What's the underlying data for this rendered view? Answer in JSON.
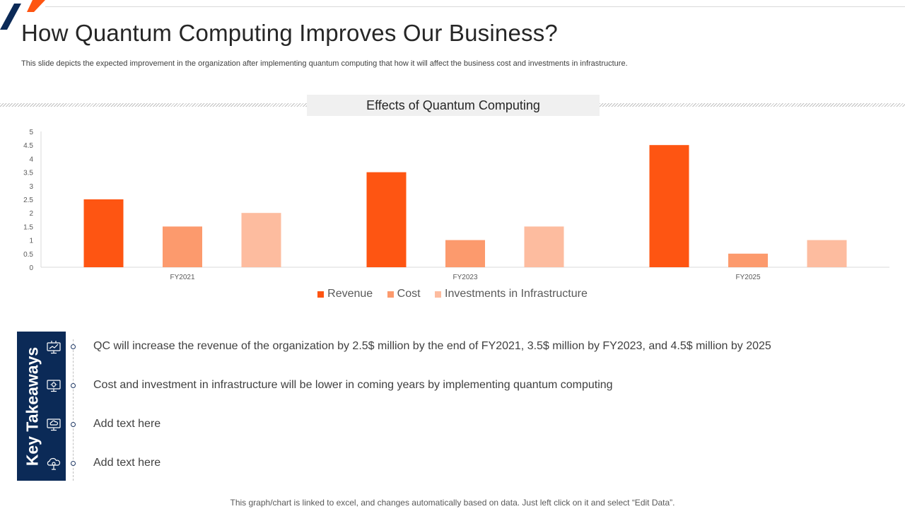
{
  "title": "How Quantum Computing Improves Our Business?",
  "subtitle": "This slide depicts the expected improvement in the organization after implementing quantum computing that how it will affect the business cost and investments in infrastructure.",
  "chart_title": "Effects of Quantum Computing",
  "chart_data": {
    "type": "bar",
    "title": "Effects of Quantum Computing",
    "categories": [
      "FY2021",
      "FY2023",
      "FY2025"
    ],
    "series": [
      {
        "name": "Revenue",
        "values": [
          2.5,
          3.5,
          4.5
        ],
        "color": "#fe5512"
      },
      {
        "name": "Cost",
        "values": [
          1.5,
          1.0,
          0.5
        ],
        "color": "#fc9a6d"
      },
      {
        "name": "Investments in Infrastructure",
        "values": [
          2.0,
          1.5,
          1.0
        ],
        "color": "#fdbc9f"
      }
    ],
    "ylim": [
      0,
      5
    ],
    "yticks": [
      "0",
      "0.5",
      "1",
      "1.5",
      "2",
      "2.5",
      "3",
      "3.5",
      "4",
      "4.5",
      "5"
    ],
    "xlabel": "",
    "ylabel": "",
    "legend": "bottom"
  },
  "key_takeaways": {
    "label": "Key Takeaways",
    "items": [
      {
        "text": "QC will increase the revenue  of the organization by 2.5$ million by the end of FY2021, 3.5$ million by FY2023, and 4.5$ million by 2025",
        "icon": "monitor-chart-icon"
      },
      {
        "text": "Cost and investment  in infrastructure  will be lower in coming years by implementing quantum  computing",
        "icon": "monitor-gear-icon"
      },
      {
        "text": "Add text here",
        "icon": "monitor-cloud-icon"
      },
      {
        "text": "Add text here",
        "icon": "cloud-gear-icon"
      }
    ]
  },
  "footer": "This graph/chart is linked to excel,  and changes automatically based on data. Just left click on it and select “Edit Data”.",
  "colors": {
    "navy": "#0b2a57",
    "orange": "#fe5512",
    "orange_mid": "#fc9a6d",
    "orange_light": "#fdbc9f"
  }
}
